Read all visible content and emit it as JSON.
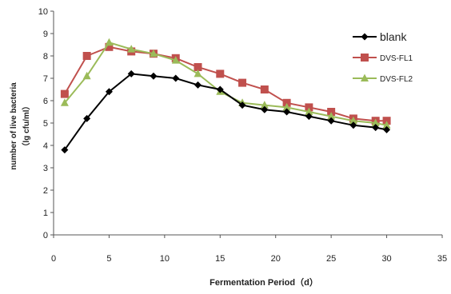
{
  "chart_data": {
    "type": "line",
    "title": "",
    "xlabel": "Fermentation Period（d）",
    "ylabel_line1": "number of live bacteria",
    "ylabel_line2": "（lg cfu/ml）",
    "xlim": [
      0,
      35
    ],
    "ylim": [
      0,
      10
    ],
    "x_ticks": [
      0,
      5,
      10,
      15,
      20,
      25,
      30,
      35
    ],
    "y_ticks": [
      0,
      1,
      2,
      3,
      4,
      5,
      6,
      7,
      8,
      9,
      10
    ],
    "grid": false,
    "legend_position": "top-right",
    "series": [
      {
        "name": "blank",
        "color": "#000000",
        "marker": "diamond",
        "x": [
          1,
          3,
          5,
          7,
          9,
          11,
          13,
          15,
          17,
          19,
          21,
          23,
          25,
          27,
          29,
          30
        ],
        "y": [
          3.8,
          5.2,
          6.4,
          7.2,
          7.1,
          7.0,
          6.7,
          6.5,
          5.8,
          5.6,
          5.5,
          5.3,
          5.1,
          4.9,
          4.8,
          4.7
        ]
      },
      {
        "name": "DVS-FL1",
        "color": "#c0504d",
        "marker": "square",
        "x": [
          1,
          3,
          5,
          7,
          9,
          11,
          13,
          15,
          17,
          19,
          21,
          23,
          25,
          27,
          29,
          30
        ],
        "y": [
          6.3,
          8.0,
          8.4,
          8.2,
          8.1,
          7.9,
          7.5,
          7.2,
          6.8,
          6.5,
          5.9,
          5.7,
          5.5,
          5.2,
          5.1,
          5.1
        ]
      },
      {
        "name": "DVS-FL2",
        "color": "#9bbb59",
        "marker": "triangle",
        "x": [
          1,
          3,
          5,
          7,
          9,
          11,
          13,
          15,
          17,
          19,
          21,
          23,
          25,
          27,
          29,
          30
        ],
        "y": [
          5.9,
          7.1,
          8.6,
          8.3,
          8.1,
          7.8,
          7.2,
          6.4,
          5.9,
          5.8,
          5.7,
          5.5,
          5.3,
          5.1,
          5.0,
          4.9
        ]
      }
    ]
  }
}
